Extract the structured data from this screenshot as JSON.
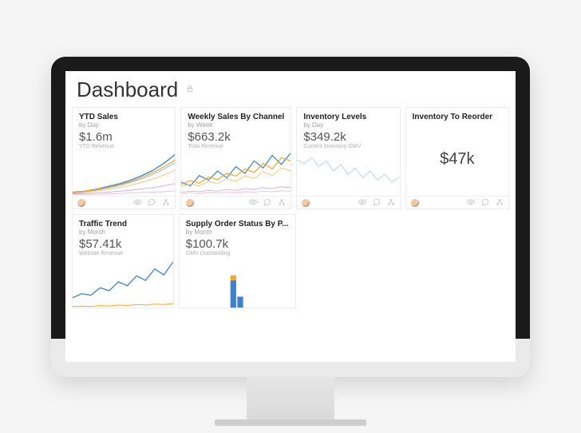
{
  "header": {
    "title": "Dashboard",
    "lock_icon": "lock"
  },
  "colors": {
    "blue": "#3b82d6",
    "lightblue": "#8fbef0",
    "orange": "#f5a623",
    "lightorange": "#f7c97a",
    "purple": "#c9a6e5",
    "pink": "#f1b5d1",
    "green": "#7cc7a0",
    "gray": "#dcdcdc",
    "bar_blue": "#3b82d6",
    "bar_orange": "#f5a623"
  },
  "cards": {
    "ytd": {
      "title": "YTD Sales",
      "sub": "by Day",
      "metric": "$1.6m",
      "metric_label": "YTD Revenue",
      "type": "line",
      "series": [
        {
          "color": "#3b82d6",
          "width": 1.3,
          "points": [
            0.08,
            0.1,
            0.14,
            0.2,
            0.26,
            0.34,
            0.44,
            0.56,
            0.72,
            0.92
          ]
        },
        {
          "color": "#8fbef0",
          "width": 1.0,
          "points": [
            0.06,
            0.09,
            0.12,
            0.17,
            0.22,
            0.29,
            0.37,
            0.47,
            0.59,
            0.74
          ]
        },
        {
          "color": "#f5a623",
          "width": 1.2,
          "points": [
            0.07,
            0.1,
            0.13,
            0.18,
            0.24,
            0.31,
            0.4,
            0.51,
            0.64,
            0.8
          ]
        },
        {
          "color": "#f7c97a",
          "width": 1.0,
          "points": [
            0.05,
            0.07,
            0.1,
            0.14,
            0.18,
            0.23,
            0.29,
            0.37,
            0.46,
            0.57
          ]
        },
        {
          "color": "#c9a6e5",
          "width": 0.9,
          "points": [
            0.04,
            0.05,
            0.06,
            0.08,
            0.1,
            0.12,
            0.15,
            0.18,
            0.22,
            0.27
          ]
        },
        {
          "color": "#f1b5d1",
          "width": 0.8,
          "points": [
            0.02,
            0.03,
            0.03,
            0.04,
            0.05,
            0.06,
            0.07,
            0.08,
            0.09,
            0.11
          ]
        }
      ]
    },
    "weekly": {
      "title": "Weekly Sales By Channel",
      "sub": "by Week",
      "metric": "$663.2k",
      "metric_label": "Total Revenue",
      "type": "line",
      "series": [
        {
          "color": "#3b82d6",
          "width": 1.2,
          "points": [
            0.3,
            0.22,
            0.45,
            0.35,
            0.55,
            0.4,
            0.65,
            0.5,
            0.78,
            0.62,
            0.9,
            0.7,
            0.95
          ]
        },
        {
          "color": "#f5a623",
          "width": 1.2,
          "points": [
            0.25,
            0.34,
            0.28,
            0.42,
            0.36,
            0.5,
            0.44,
            0.6,
            0.52,
            0.72,
            0.6,
            0.85,
            0.78
          ]
        },
        {
          "color": "#f7c97a",
          "width": 1.0,
          "points": [
            0.2,
            0.26,
            0.22,
            0.32,
            0.27,
            0.38,
            0.32,
            0.45,
            0.38,
            0.54,
            0.45,
            0.62,
            0.56
          ]
        },
        {
          "color": "#c9a6e5",
          "width": 0.8,
          "points": [
            0.08,
            0.1,
            0.09,
            0.12,
            0.1,
            0.14,
            0.12,
            0.16,
            0.14,
            0.18,
            0.16,
            0.2,
            0.18
          ]
        },
        {
          "color": "#f1b5d1",
          "width": 0.8,
          "points": [
            0.05,
            0.06,
            0.05,
            0.07,
            0.06,
            0.08,
            0.07,
            0.09,
            0.08,
            0.1,
            0.09,
            0.11,
            0.1
          ]
        }
      ]
    },
    "inventory": {
      "title": "Inventory Levels",
      "sub": "by Day",
      "metric": "$349.2k",
      "metric_label": "Current Inventory GMV",
      "type": "line",
      "series": [
        {
          "color": "#b9d6ee",
          "width": 1.0,
          "points": [
            0.8,
            0.72,
            0.85,
            0.65,
            0.78,
            0.55,
            0.7,
            0.48,
            0.62,
            0.4,
            0.55,
            0.35,
            0.48,
            0.3,
            0.42
          ]
        }
      ]
    },
    "reorder": {
      "title": "Inventory To Reorder",
      "sub": "",
      "type": "number",
      "value": "$47k"
    },
    "traffic": {
      "title": "Traffic Trend",
      "sub": "by Month",
      "metric": "$57.41k",
      "metric_label": "Website Revenue",
      "type": "line",
      "series": [
        {
          "color": "#3b82d6",
          "width": 1.3,
          "points": [
            0.2,
            0.28,
            0.25,
            0.4,
            0.34,
            0.52,
            0.44,
            0.64,
            0.55,
            0.78,
            0.66,
            0.92
          ]
        },
        {
          "color": "#f5a623",
          "width": 1.0,
          "points": [
            0.02,
            0.03,
            0.02,
            0.04,
            0.03,
            0.05,
            0.04,
            0.06,
            0.05,
            0.07,
            0.06,
            0.08
          ]
        }
      ]
    },
    "supply": {
      "title": "Supply Order Status By P...",
      "sub": "by Month",
      "metric": "$100.7k",
      "metric_label": "GMV Outstanding",
      "type": "bar",
      "bars": [
        {
          "x": 0.44,
          "h": 0.55,
          "w": 0.05,
          "color": "#3b82d6"
        },
        {
          "x": 0.5,
          "h": 0.22,
          "w": 0.05,
          "color": "#3b82d6"
        },
        {
          "x": 0.43,
          "h": 0.1,
          "w": 0.05,
          "color": "#f5a623",
          "stackOn": 0
        }
      ]
    }
  },
  "footer_icons": {
    "eye": "eye",
    "comment": "comment",
    "share": "share"
  }
}
